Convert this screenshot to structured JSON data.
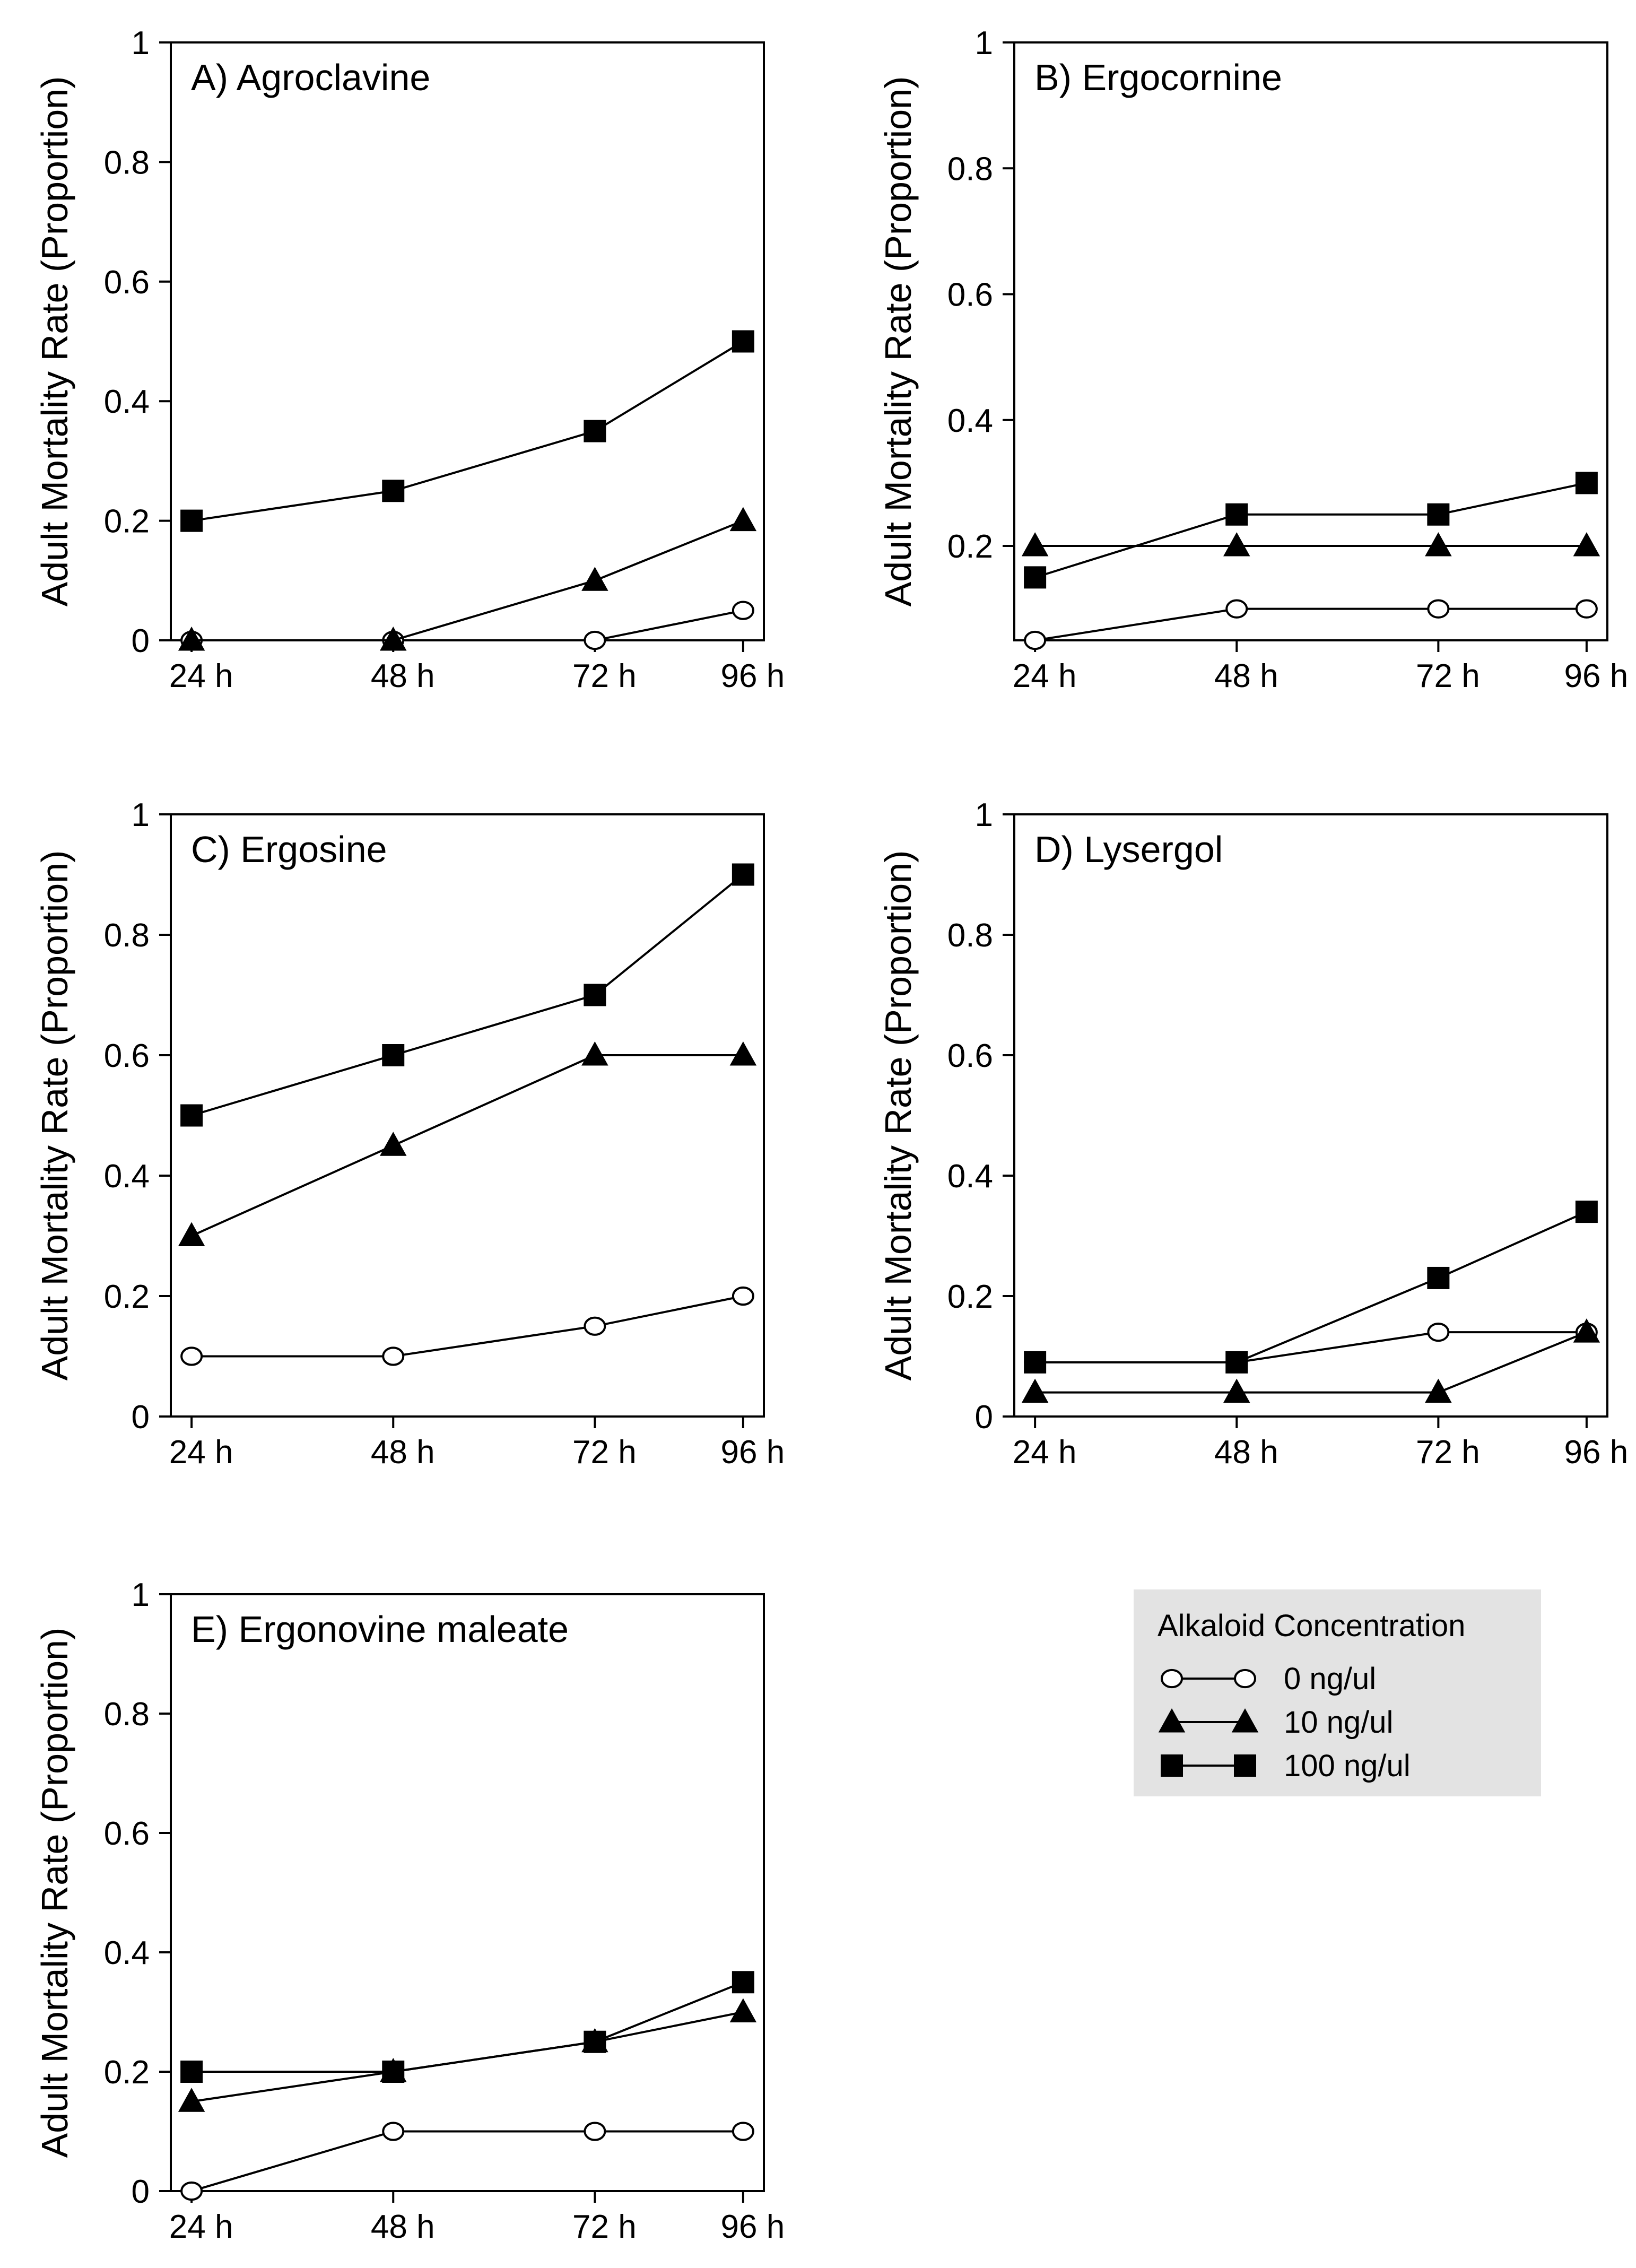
{
  "chart_data": [
    {
      "type": "line",
      "title": "A) Agroclavine",
      "ylabel": "Adult Mortality Rate (Proportion)",
      "categories": [
        "24 h",
        "48 h",
        "72 h",
        "96 h"
      ],
      "ylim": [
        0,
        1
      ],
      "yticks": [
        "0",
        "0.2",
        "0.4",
        "0.6",
        "0.8",
        "1"
      ],
      "series": [
        {
          "name": "0 ng/ul",
          "marker": "circle-open",
          "values": [
            0,
            0,
            0,
            0.05
          ]
        },
        {
          "name": "10 ng/ul",
          "marker": "triangle-filled",
          "values": [
            0,
            0,
            0.1,
            0.2
          ]
        },
        {
          "name": "100 ng/ul",
          "marker": "square-filled",
          "values": [
            0.2,
            0.25,
            0.35,
            0.5
          ]
        }
      ]
    },
    {
      "type": "line",
      "title": "B) Ergocornine",
      "ylabel": "Adult Mortality Rate (Proportion)",
      "categories": [
        "24 h",
        "48 h",
        "72 h",
        "96 h"
      ],
      "ylim": [
        0.05,
        1
      ],
      "yticks": [
        "0.2",
        "0.4",
        "0.6",
        "0.8",
        "1"
      ],
      "series": [
        {
          "name": "0 ng/ul",
          "marker": "circle-open",
          "values": [
            0.05,
            0.1,
            0.1,
            0.1
          ]
        },
        {
          "name": "10 ng/ul",
          "marker": "triangle-filled",
          "values": [
            0.2,
            0.2,
            0.2,
            0.2
          ]
        },
        {
          "name": "100 ng/ul",
          "marker": "square-filled",
          "values": [
            0.15,
            0.25,
            0.25,
            0.3
          ]
        }
      ]
    },
    {
      "type": "line",
      "title": "C) Ergosine",
      "ylabel": "Adult Mortality Rate (Proportion)",
      "categories": [
        "24 h",
        "48 h",
        "72 h",
        "96 h"
      ],
      "ylim": [
        0,
        1
      ],
      "yticks": [
        "0",
        "0.2",
        "0.4",
        "0.6",
        "0.8",
        "1"
      ],
      "series": [
        {
          "name": "0 ng/ul",
          "marker": "circle-open",
          "values": [
            0.1,
            0.1,
            0.15,
            0.2
          ]
        },
        {
          "name": "10 ng/ul",
          "marker": "triangle-filled",
          "values": [
            0.3,
            0.45,
            0.6,
            0.6
          ]
        },
        {
          "name": "100 ng/ul",
          "marker": "square-filled",
          "values": [
            0.5,
            0.6,
            0.7,
            0.9
          ]
        }
      ]
    },
    {
      "type": "line",
      "title": "D) Lysergol",
      "ylabel": "Adult Mortality Rate (Proportion)",
      "categories": [
        "24 h",
        "48 h",
        "72 h",
        "96 h"
      ],
      "ylim": [
        0,
        1
      ],
      "yticks": [
        "0",
        "0.2",
        "0.4",
        "0.6",
        "0.8",
        "1"
      ],
      "series": [
        {
          "name": "0 ng/ul",
          "marker": "circle-open",
          "values": [
            0.09,
            0.09,
            0.14,
            0.14
          ]
        },
        {
          "name": "10 ng/ul",
          "marker": "triangle-filled",
          "values": [
            0.04,
            0.04,
            0.04,
            0.14
          ]
        },
        {
          "name": "100 ng/ul",
          "marker": "square-filled",
          "values": [
            0.09,
            0.09,
            0.23,
            0.34
          ]
        }
      ]
    },
    {
      "type": "line",
      "title": "E) Ergonovine maleate",
      "ylabel": "Adult Mortality Rate (Proportion)",
      "categories": [
        "24 h",
        "48 h",
        "72 h",
        "96 h"
      ],
      "ylim": [
        0,
        1
      ],
      "yticks": [
        "0",
        "0.2",
        "0.4",
        "0.6",
        "0.8",
        "1"
      ],
      "series": [
        {
          "name": "0 ng/ul",
          "marker": "circle-open",
          "values": [
            0,
            0.1,
            0.1,
            0.1
          ]
        },
        {
          "name": "10 ng/ul",
          "marker": "triangle-filled",
          "values": [
            0.15,
            0.2,
            0.25,
            0.3
          ]
        },
        {
          "name": "100 ng/ul",
          "marker": "square-filled",
          "values": [
            0.2,
            0.2,
            0.25,
            0.35
          ]
        }
      ]
    }
  ],
  "legend": {
    "title": "Alkaloid Concentration",
    "items": [
      {
        "label": "0 ng/ul",
        "marker": "circle-open"
      },
      {
        "label": "10 ng/ul",
        "marker": "triangle-filled"
      },
      {
        "label": "100 ng/ul",
        "marker": "square-filled"
      }
    ]
  },
  "colors": {
    "line": "#000000",
    "marker_fill": "#000000",
    "open_marker_fill": "#ffffff",
    "legend_background": "#e3e3e3"
  }
}
